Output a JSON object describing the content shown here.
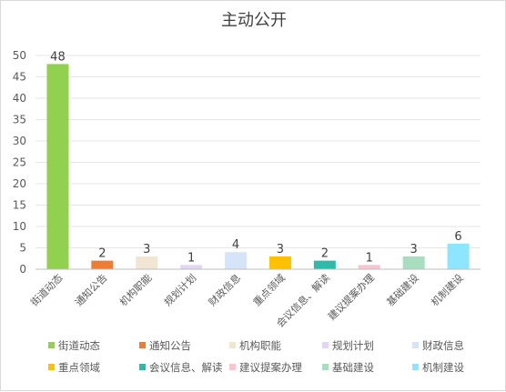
{
  "chart_data": {
    "type": "bar",
    "title": "主动公开",
    "xlabel": "",
    "ylabel": "",
    "categories": [
      "街道动态",
      "通知公告",
      "机构职能",
      "规划计划",
      "财政信息",
      "重点领域",
      "会议信息、解读",
      "建议提案办理",
      "基础建设",
      "机制建设"
    ],
    "values": [
      48,
      2,
      3,
      1,
      4,
      3,
      2,
      1,
      3,
      6
    ],
    "colors": [
      "#92d050",
      "#ed7d31",
      "#f0e6d2",
      "#e3d6f2",
      "#d6e4fa",
      "#ffc000",
      "#2ebaa8",
      "#f7c6d0",
      "#a8ddbf",
      "#8ee5ff"
    ],
    "ylim": [
      0,
      50
    ],
    "yticks": [
      0,
      5,
      10,
      15,
      20,
      25,
      30,
      35,
      40,
      45,
      50
    ],
    "grid": true,
    "legend_position": "bottom",
    "data_labels": true
  }
}
